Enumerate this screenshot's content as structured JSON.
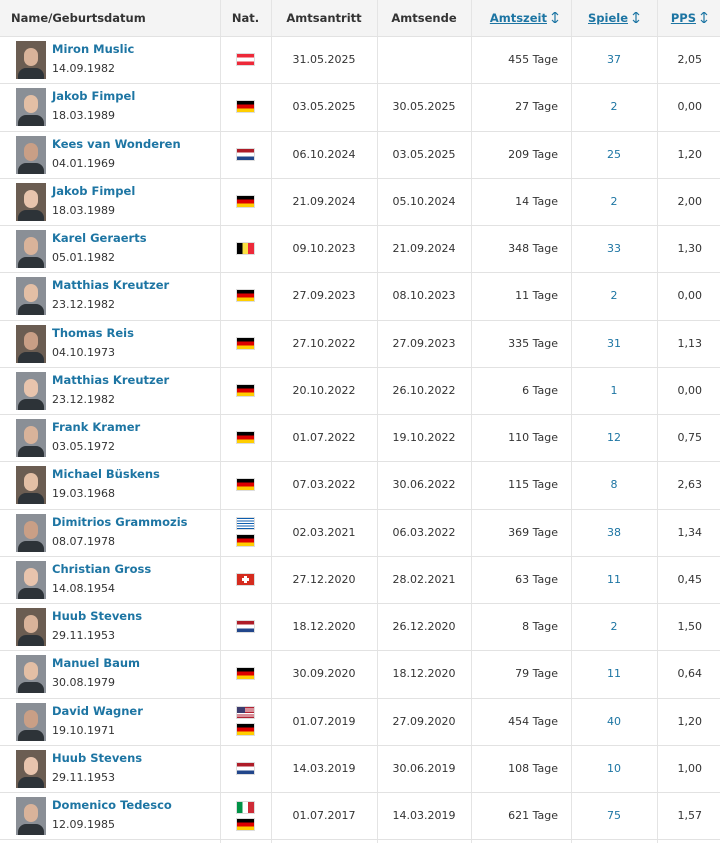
{
  "table": {
    "headers": [
      "Name/Geburtsdatum",
      "Nat.",
      "Amtsantritt",
      "Amtsende",
      "Amtszeit",
      "Spiele",
      "PPS"
    ],
    "rows": [
      [
        "Miron Muslic",
        "14.09.1982",
        "31.05.2025",
        null,
        "455 Tage",
        "37",
        "2,05"
      ],
      [
        "Jakob Fimpel",
        "18.03.1989",
        "03.05.2025",
        "30.05.2025",
        "27 Tage",
        "2",
        "0,00"
      ],
      [
        "Kees van Wonderen",
        "04.01.1969",
        "06.10.2024",
        "03.05.2025",
        "209 Tage",
        "25",
        "1,20"
      ],
      [
        "Jakob Fimpel",
        "18.03.1989",
        "21.09.2024",
        "05.10.2024",
        "14 Tage",
        "2",
        "2,00"
      ],
      [
        "Karel Geraerts",
        "05.01.1982",
        "09.10.2023",
        "21.09.2024",
        "348 Tage",
        "33",
        "1,30"
      ],
      [
        "Matthias Kreutzer",
        "23.12.1982",
        "27.09.2023",
        "08.10.2023",
        "11 Tage",
        "2",
        "0,00"
      ],
      [
        "Thomas Reis",
        "04.10.1973",
        "27.10.2022",
        "27.09.2023",
        "335 Tage",
        "31",
        "1,13"
      ],
      [
        "Matthias Kreutzer",
        "23.12.1982",
        "20.10.2022",
        "26.10.2022",
        "6 Tage",
        "1",
        "0,00"
      ],
      [
        "Frank Kramer",
        "03.05.1972",
        "01.07.2022",
        "19.10.2022",
        "110 Tage",
        "12",
        "0,75"
      ],
      [
        "Michael Büskens",
        "19.03.1968",
        "07.03.2022",
        "30.06.2022",
        "115 Tage",
        "8",
        "2,63"
      ],
      [
        "Dimitrios Grammozis",
        "08.07.1978",
        "02.03.2021",
        "06.03.2022",
        "369 Tage",
        "38",
        "1,34"
      ],
      [
        "Christian Gross",
        "14.08.1954",
        "27.12.2020",
        "28.02.2021",
        "63 Tage",
        "11",
        "0,45"
      ],
      [
        "Huub Stevens",
        "29.11.1953",
        "18.12.2020",
        "26.12.2020",
        "8 Tage",
        "2",
        "1,50"
      ],
      [
        "Manuel Baum",
        "30.08.1979",
        "30.09.2020",
        "18.12.2020",
        "79 Tage",
        "11",
        "0,64"
      ],
      [
        "David Wagner",
        "19.10.1971",
        "01.07.2019",
        "27.09.2020",
        "454 Tage",
        "40",
        "1,20"
      ],
      [
        "Huub Stevens",
        "29.11.1953",
        "14.03.2019",
        "30.06.2019",
        "108 Tage",
        "10",
        "1,00"
      ],
      [
        "Domenico Tedesco",
        "12.09.1985",
        "01.07.2017",
        "14.03.2019",
        "621 Tage",
        "75",
        "1,57"
      ]
    ]
  }
}
